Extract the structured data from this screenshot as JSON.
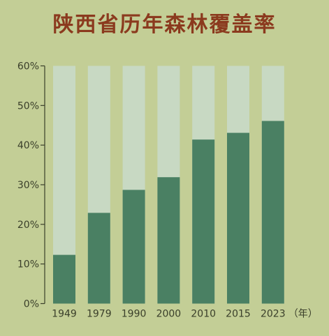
{
  "title": "陕西省历年森林覆盖率",
  "chart_data": {
    "type": "bar",
    "title": "陕西省历年森林覆盖率",
    "xlabel": "",
    "ylabel": "",
    "x_unit": "（年）",
    "categories": [
      "1949",
      "1979",
      "1990",
      "2000",
      "2010",
      "2015",
      "2023"
    ],
    "values": [
      12.3,
      22.9,
      28.7,
      31.9,
      41.4,
      43.1,
      46.1
    ],
    "ylim": [
      0,
      60
    ],
    "yticks": [
      0,
      10,
      20,
      30,
      40,
      50,
      60
    ],
    "ytick_labels": [
      "0%",
      "10%",
      "20%",
      "30%",
      "40%",
      "50%",
      "60%"
    ],
    "grid": false,
    "stacked_background_to": 60,
    "colors": {
      "bar": "#4a8063",
      "bar_background": "#c8d9c3",
      "axis": "#3a3f2a",
      "title": "#8b3a1e",
      "page_background": "#c3ce96"
    }
  }
}
